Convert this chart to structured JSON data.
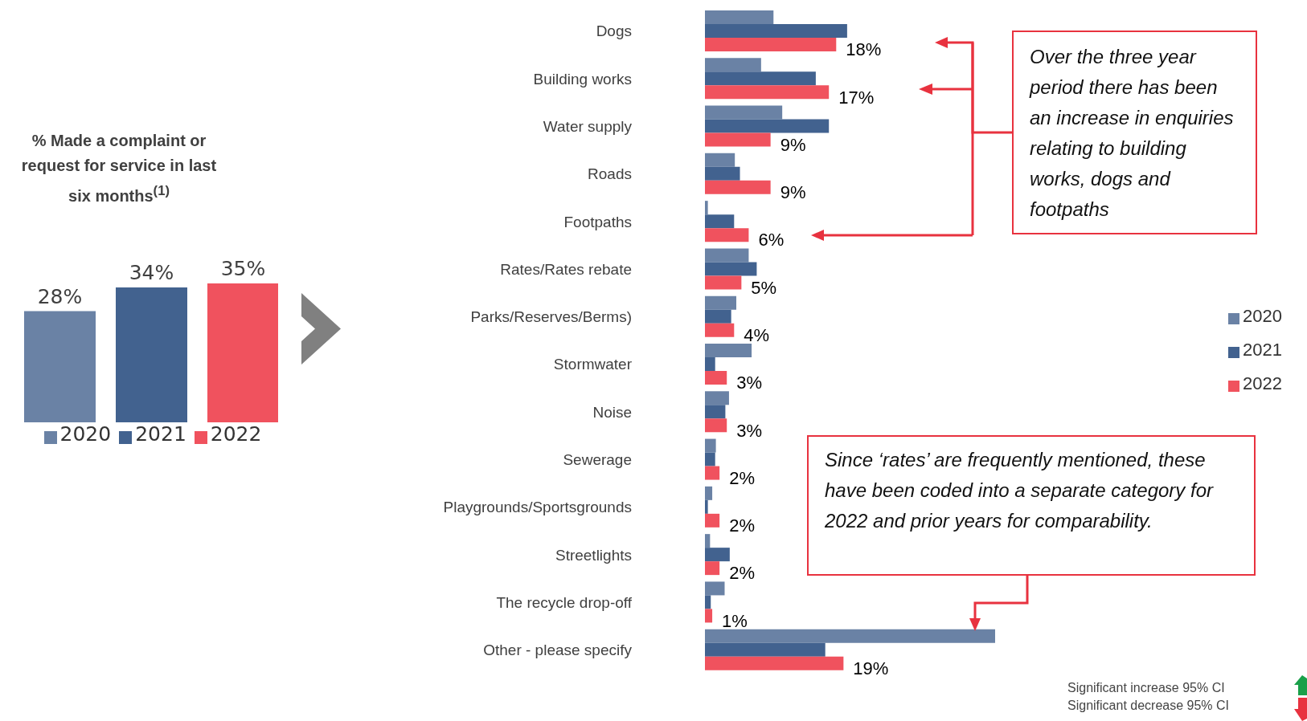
{
  "chart_data": [
    {
      "type": "bar",
      "title": "% Made a complaint or request for service in last six months$^{(1)}$",
      "categories": [
        null
      ],
      "legend": "bottom",
      "series": [
        {
          "name": "2020",
          "color": "#6a82a5",
          "values": [
            28
          ],
          "value_labels": [
            "28%"
          ]
        },
        {
          "name": "2021",
          "color": "#42628f",
          "values": [
            34
          ],
          "value_labels": [
            "34%"
          ]
        },
        {
          "name": "2022",
          "color": "#f0525e",
          "values": [
            35
          ],
          "value_labels": [
            "35%"
          ]
        }
      ]
    },
    {
      "type": "bar",
      "orientation": "horizontal",
      "legend": "right",
      "categories": [
        "Dogs",
        "Building works",
        "Water supply",
        "Roads",
        "Footpaths",
        "Rates/Rates rebate",
        "Parks/Reserves/Berms)",
        "Stormwater",
        "Noise",
        "Sewerage",
        "Playgrounds/Sportsgrounds",
        "Streetlights",
        "The recycle drop-off",
        "Other - please specify"
      ],
      "series": [
        {
          "name": "2020",
          "color": "#6a82a5",
          "values": [
            9.4,
            7.7,
            10.6,
            4.1,
            0.4,
            6.0,
            4.3,
            6.4,
            3.3,
            1.5,
            1.0,
            0.7,
            2.7,
            39.8
          ]
        },
        {
          "name": "2021",
          "color": "#42628f",
          "values": [
            19.5,
            15.2,
            17.0,
            4.8,
            4.0,
            7.1,
            3.6,
            1.4,
            2.8,
            1.4,
            0.4,
            3.4,
            0.8,
            16.5
          ]
        },
        {
          "name": "2022",
          "color": "#f0525e",
          "values": [
            18,
            17,
            9,
            9,
            6,
            5,
            4,
            3,
            3,
            2,
            2,
            2,
            1,
            19
          ],
          "value_labels": [
            "18%",
            "17%",
            "9%",
            "9%",
            "6%",
            "5%",
            "4%",
            "3%",
            "3%",
            "2%",
            "2%",
            "2%",
            "1%",
            "19%"
          ]
        }
      ],
      "annotations": [
        "Over the three year period there has been an increase in enquiries relating to building works, dogs and footpaths",
        "Since ‘rates’ are frequently mentioned, these have been coded into a separate category for 2022 and prior years for comparability.",
        "Significant increase 95% CI",
        "Significant decrease 95% CI"
      ]
    }
  ]
}
